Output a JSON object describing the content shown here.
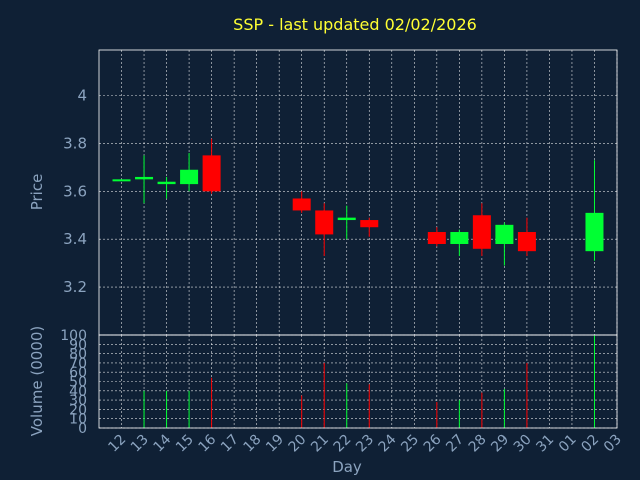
{
  "chart_data": [
    {
      "type": "candlestick",
      "title": "SSP - last updated 02/02/2026",
      "ylabel": "Price",
      "ylim": [
        3.0,
        4.19
      ],
      "yticks": [
        "3.2",
        "3.4",
        "3.6",
        "3.8",
        "4"
      ],
      "grid": true,
      "up_color": "#00ff33",
      "down_color": "#ff0000",
      "candles": [
        {
          "day": "12",
          "open": 3.65,
          "high": 3.65,
          "low": 3.65,
          "close": 3.65
        },
        {
          "day": "13",
          "open": 3.65,
          "high": 3.75,
          "low": 3.55,
          "close": 3.66
        },
        {
          "day": "14",
          "open": 3.63,
          "high": 3.66,
          "low": 3.57,
          "close": 3.64
        },
        {
          "day": "15",
          "open": 3.63,
          "high": 3.76,
          "low": 3.6,
          "close": 3.69
        },
        {
          "day": "16",
          "open": 3.75,
          "high": 3.82,
          "low": 3.59,
          "close": 3.6
        },
        {
          "day": "20",
          "open": 3.57,
          "high": 3.6,
          "low": 3.51,
          "close": 3.52
        },
        {
          "day": "21",
          "open": 3.52,
          "high": 3.55,
          "low": 3.33,
          "close": 3.42
        },
        {
          "day": "22",
          "open": 3.48,
          "high": 3.54,
          "low": 3.4,
          "close": 3.49
        },
        {
          "day": "23",
          "open": 3.48,
          "high": 3.49,
          "low": 3.41,
          "close": 3.45
        },
        {
          "day": "26",
          "open": 3.43,
          "high": 3.45,
          "low": 3.37,
          "close": 3.38
        },
        {
          "day": "27",
          "open": 3.38,
          "high": 3.44,
          "low": 3.33,
          "close": 3.43
        },
        {
          "day": "28",
          "open": 3.5,
          "high": 3.55,
          "low": 3.33,
          "close": 3.36
        },
        {
          "day": "29",
          "open": 3.38,
          "high": 3.47,
          "low": 3.29,
          "close": 3.46
        },
        {
          "day": "30",
          "open": 3.43,
          "high": 3.49,
          "low": 3.33,
          "close": 3.35
        },
        {
          "day": "02",
          "open": 3.35,
          "high": 3.73,
          "low": 3.31,
          "close": 3.51
        }
      ]
    },
    {
      "type": "bar",
      "ylabel": "Volume (0000)",
      "xlabel": "Day",
      "ylim": [
        0,
        100
      ],
      "yticks": [
        "0",
        "10",
        "20",
        "30",
        "40",
        "50",
        "60",
        "70",
        "80",
        "90",
        "100"
      ],
      "categories": [
        "12",
        "13",
        "14",
        "15",
        "16",
        "17",
        "18",
        "19",
        "20",
        "21",
        "22",
        "23",
        "24",
        "25",
        "26",
        "27",
        "28",
        "29",
        "30",
        "31",
        "01",
        "02",
        "03"
      ],
      "values": [
        0,
        40,
        40,
        40,
        54,
        0,
        0,
        0,
        35,
        70,
        48,
        47,
        0,
        0,
        28,
        30,
        38,
        42,
        70,
        0,
        0,
        100,
        0
      ],
      "colors": [
        "",
        "#00ff33",
        "#00ff33",
        "#00ff33",
        "#ff0000",
        "",
        "",
        "",
        "#ff0000",
        "#ff0000",
        "#00ff33",
        "#ff0000",
        "",
        "",
        "#ff0000",
        "#00ff33",
        "#ff0000",
        "#00ff33",
        "#ff0000",
        "",
        "",
        "#00ff33",
        ""
      ],
      "grid": true
    }
  ]
}
